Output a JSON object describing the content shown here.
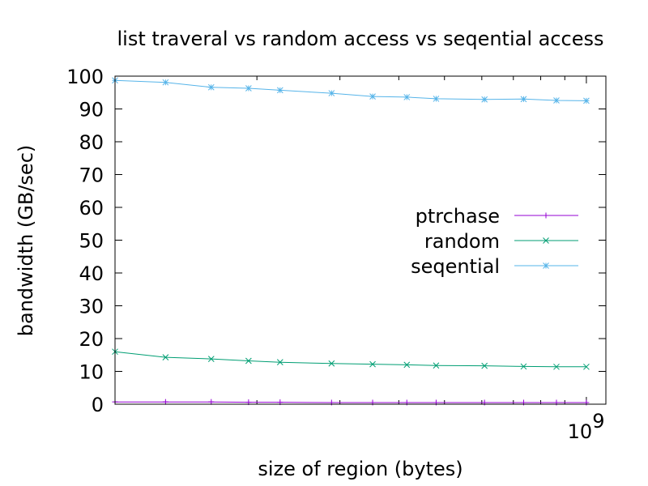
{
  "chart_data": {
    "type": "line",
    "title": "list traveral vs random access vs seqential access",
    "xlabel": "size of region (bytes)",
    "ylabel": "bandwidth (GB/sec)",
    "x_scale": "log",
    "xlim": [
      100000000,
      1100000000
    ],
    "ylim": [
      0,
      100
    ],
    "yticks": [
      0,
      10,
      20,
      30,
      40,
      50,
      60,
      70,
      80,
      90,
      100
    ],
    "yticklabels": [
      "0",
      "10",
      "20",
      "30",
      "40",
      "50",
      "60",
      "70",
      "80",
      "90",
      "100"
    ],
    "xticks": [
      1000000000
    ],
    "xticklabels_base": "10",
    "xticklabels_exp": "9",
    "grid": false,
    "legend_position": "center-right",
    "x": [
      100000000,
      128000000,
      160000000,
      192000000,
      224000000,
      288000000,
      352000000,
      416000000,
      480000000,
      608000000,
      736000000,
      864000000,
      1000000000
    ],
    "series": [
      {
        "name": "ptrchase",
        "color": "#9400d3",
        "marker": "plus",
        "values": [
          0.7,
          0.7,
          0.7,
          0.6,
          0.6,
          0.5,
          0.5,
          0.5,
          0.5,
          0.5,
          0.5,
          0.5,
          0.5
        ]
      },
      {
        "name": "random",
        "color": "#009e73",
        "marker": "cross",
        "values": [
          16.0,
          14.3,
          13.8,
          13.2,
          12.8,
          12.4,
          12.2,
          12.0,
          11.8,
          11.7,
          11.5,
          11.4,
          11.4
        ]
      },
      {
        "name": "seqential",
        "color": "#56b4e9",
        "marker": "star",
        "values": [
          98.7,
          98.1,
          96.6,
          96.3,
          95.7,
          94.8,
          93.8,
          93.6,
          93.1,
          92.9,
          93.0,
          92.6,
          92.5
        ]
      }
    ]
  }
}
